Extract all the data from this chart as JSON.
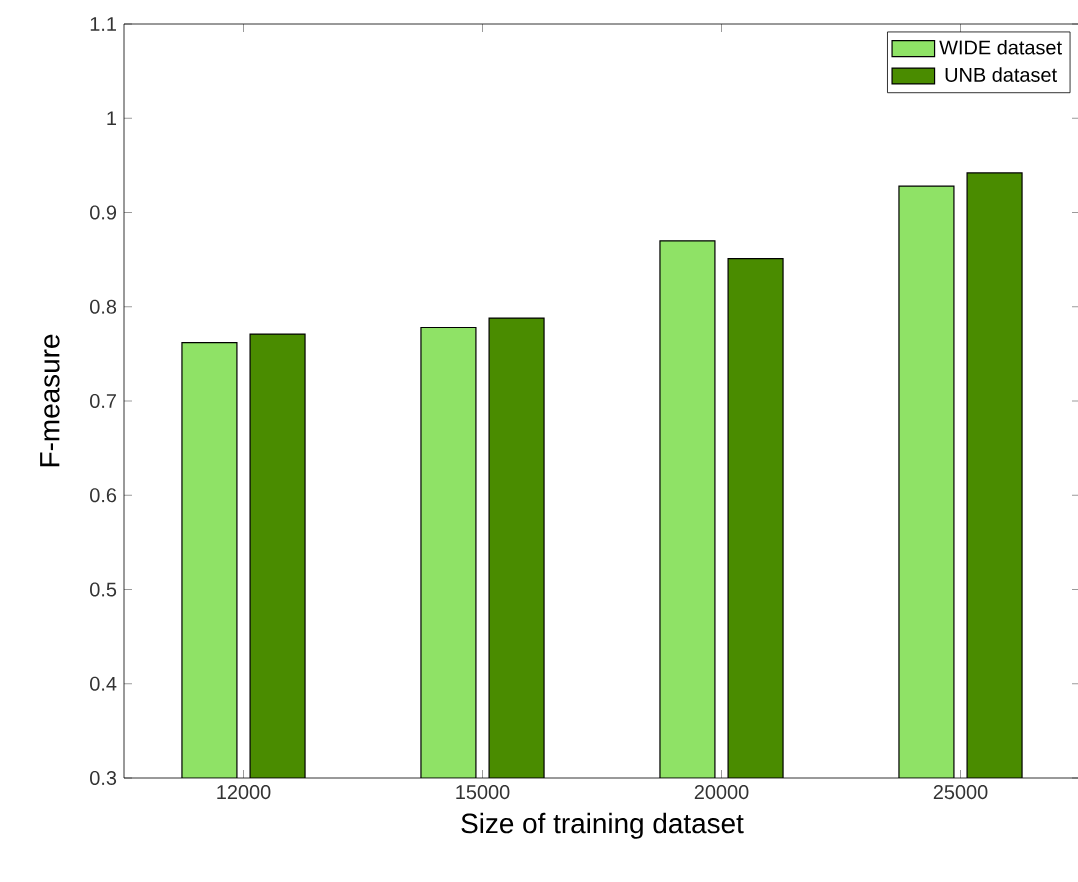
{
  "chart_data": {
    "type": "bar",
    "xlabel": "Size of training dataset",
    "ylabel": "F-measure",
    "categories": [
      "12000",
      "15000",
      "20000",
      "25000"
    ],
    "series": [
      {
        "name": "WIDE dataset",
        "color": "#8fe266",
        "values": [
          0.762,
          0.778,
          0.87,
          0.928
        ]
      },
      {
        "name": "UNB dataset",
        "color": "#4a8c00",
        "values": [
          0.771,
          0.788,
          0.851,
          0.942
        ]
      }
    ],
    "ylim": [
      0.3,
      1.1
    ],
    "yticks": [
      0.3,
      0.4,
      0.5,
      0.6,
      0.7,
      0.8,
      0.9,
      1,
      1.1
    ],
    "legend": "top right",
    "grid": false
  }
}
